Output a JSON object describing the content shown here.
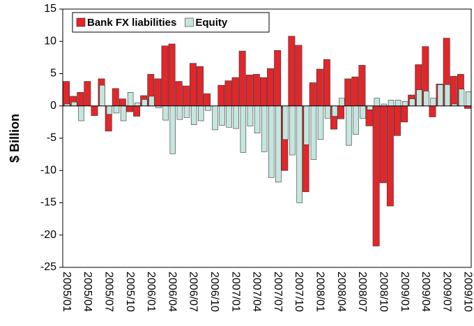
{
  "chart_data": {
    "type": "bar",
    "y_label": "$ Billion",
    "categories": [
      "2005/01",
      null,
      null,
      "2005/04",
      null,
      null,
      "2005/07",
      null,
      null,
      "2005/10",
      null,
      null,
      "2006/01",
      null,
      null,
      "2006/04",
      null,
      null,
      "2006/07",
      null,
      null,
      "2006/10",
      null,
      null,
      "2007/01",
      null,
      null,
      "2007/04",
      null,
      null,
      "2007/07",
      null,
      null,
      "2007/10",
      null,
      null,
      "2008/01",
      null,
      null,
      "2008/04",
      null,
      null,
      "2008/07",
      null,
      null,
      "2008/10",
      null,
      null,
      "2009/01",
      null,
      null,
      "2009/04",
      null,
      null,
      "2009/07",
      null,
      null,
      "2009/10"
    ],
    "series": [
      {
        "name": "Bank FX liabilities",
        "color": "#e2262a",
        "values": [
          3.8,
          1.5,
          2.1,
          3.8,
          -1.5,
          4.2,
          -3.9,
          2.7,
          1.1,
          -0.9,
          -1.6,
          1.6,
          4.9,
          4.2,
          9.3,
          9.6,
          3.8,
          3.1,
          6.6,
          6.1,
          1.9,
          0,
          3.2,
          3.9,
          4.4,
          8.5,
          4.8,
          4.9,
          4.4,
          5.8,
          8.6,
          -10.0,
          10.8,
          9.4,
          -13.3,
          3.6,
          5.7,
          7.2,
          -3.6,
          -2.0,
          4.2,
          4.5,
          6.3,
          -3.1,
          -21.7,
          -11.9,
          -15.5,
          -4.6,
          -2.5,
          1.7,
          6.4,
          9.2,
          -1.7,
          3.4,
          10.5,
          4.6,
          4.9,
          -0.4
        ]
      },
      {
        "name": "Equity",
        "color": "#c5e6df",
        "values": [
          0.3,
          0.6,
          -2.3,
          0,
          0,
          3.2,
          -1.3,
          -1.1,
          -2.3,
          2.1,
          0.5,
          1.0,
          1.5,
          -0.3,
          -2.2,
          -7.4,
          -2.1,
          -1.8,
          -2.9,
          -2.3,
          -0.7,
          -3.7,
          -3.0,
          -3.3,
          -3.5,
          -7.2,
          -3.1,
          -4.2,
          -7.1,
          -11.1,
          -11.8,
          -5.2,
          -7.6,
          -15.0,
          -6.0,
          -8.3,
          -5.2,
          -1.9,
          -1.6,
          1.2,
          -6.1,
          -4.4,
          -1.9,
          -0.6,
          1.2,
          0.3,
          0.9,
          0.9,
          0.7,
          1.1,
          2.5,
          2.3,
          1.2,
          3.3,
          3.3,
          0.3,
          2.6,
          2.2
        ]
      }
    ],
    "ylim": [
      -25,
      15
    ],
    "yticks": [
      15,
      10,
      5,
      0,
      -5,
      -10,
      -15,
      -20,
      -25
    ],
    "grid": false,
    "legend": "top-left"
  }
}
